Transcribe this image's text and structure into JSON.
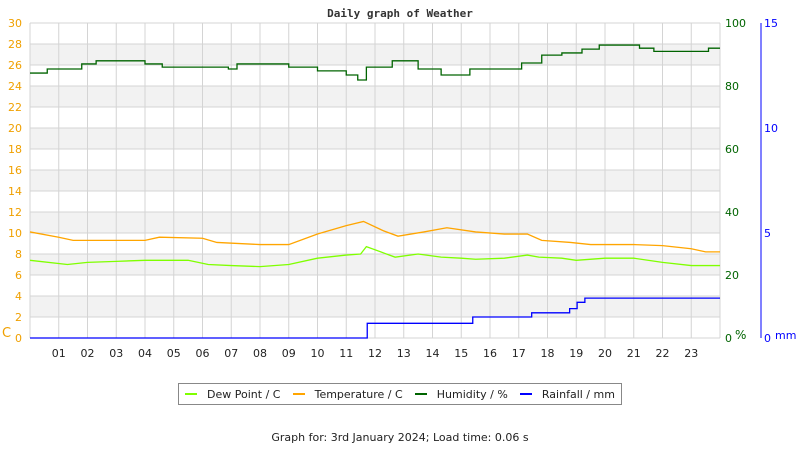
{
  "chart_data": {
    "type": "line",
    "title": "Daily graph of Weather",
    "x_ticks": [
      "01",
      "02",
      "03",
      "04",
      "05",
      "06",
      "07",
      "08",
      "09",
      "10",
      "11",
      "12",
      "13",
      "14",
      "15",
      "16",
      "17",
      "18",
      "19",
      "20",
      "21",
      "22",
      "23"
    ],
    "xlim": [
      0,
      24
    ],
    "grid": true,
    "axes": {
      "left": {
        "label": "C",
        "range": [
          0,
          30
        ],
        "ticks": [
          0,
          2,
          4,
          6,
          8,
          10,
          12,
          14,
          16,
          18,
          20,
          22,
          24,
          26,
          28,
          30
        ],
        "color": "#f0a000"
      },
      "right_humidity": {
        "label": "%",
        "range": [
          0,
          100
        ],
        "ticks": [
          0,
          20,
          40,
          60,
          80,
          100
        ],
        "color": "#006400"
      },
      "right_rain": {
        "label": "mm",
        "range": [
          0,
          15
        ],
        "ticks": [
          0,
          5,
          10,
          15
        ],
        "color": "#0000ff"
      }
    },
    "series": [
      {
        "name": "Dew Point / C",
        "color": "#7fff00",
        "axis": "left",
        "step": false,
        "x": [
          0,
          1.3,
          2,
          3,
          4,
          5.5,
          6.2,
          7,
          8,
          9,
          10,
          11,
          11.5,
          11.7,
          12.3,
          12.7,
          13.5,
          14.3,
          15,
          15.5,
          16.5,
          17.3,
          17.7,
          18.5,
          19,
          20,
          21,
          22,
          23,
          24
        ],
        "values": [
          7.4,
          7.0,
          7.2,
          7.3,
          7.4,
          7.4,
          7.0,
          6.9,
          6.8,
          7.0,
          7.6,
          7.9,
          8.0,
          8.7,
          8.1,
          7.7,
          8.0,
          7.7,
          7.6,
          7.5,
          7.6,
          7.9,
          7.7,
          7.6,
          7.4,
          7.6,
          7.6,
          7.2,
          6.9,
          6.9
        ]
      },
      {
        "name": "Temperature / C",
        "color": "#ffa500",
        "axis": "left",
        "step": false,
        "x": [
          0,
          1,
          1.5,
          4,
          4.5,
          6,
          6.5,
          8,
          9,
          10,
          11,
          11.6,
          12.3,
          12.8,
          13.7,
          14.5,
          15.5,
          16.5,
          17.3,
          17.8,
          18.8,
          19.5,
          21,
          22,
          23,
          23.5,
          24
        ],
        "values": [
          10.1,
          9.6,
          9.3,
          9.3,
          9.6,
          9.5,
          9.1,
          8.9,
          8.9,
          9.9,
          10.7,
          11.1,
          10.2,
          9.7,
          10.1,
          10.5,
          10.1,
          9.9,
          9.9,
          9.3,
          9.1,
          8.9,
          8.9,
          8.8,
          8.5,
          8.2,
          8.2
        ]
      },
      {
        "name": "Humidity / %",
        "color": "#006400",
        "axis": "right_humidity",
        "step": true,
        "x": [
          0,
          0.6,
          1.8,
          2.3,
          4,
          4.6,
          6.9,
          7.2,
          9.0,
          10,
          11.0,
          11.4,
          11.7,
          12.6,
          13.5,
          14.3,
          15.3,
          16.5,
          17.1,
          17.8,
          18.5,
          19.2,
          19.8,
          21.2,
          21.7,
          23.6,
          24
        ],
        "values": [
          84.1,
          85.4,
          87,
          88,
          87,
          86,
          85.4,
          87,
          86,
          84.8,
          83.5,
          81.9,
          86,
          88,
          85.4,
          83.5,
          85.4,
          85.4,
          87.3,
          89.8,
          90.5,
          91.7,
          93,
          92,
          91,
          92,
          92
        ]
      },
      {
        "name": "Rainfall / mm",
        "color": "#0000ff",
        "axis": "right_rain",
        "step": true,
        "x": [
          0,
          11.73,
          15.4,
          17.45,
          18.77,
          19.03,
          19.3,
          24
        ],
        "values": [
          0,
          0.7,
          1.0,
          1.2,
          1.4,
          1.7,
          1.9,
          1.9
        ]
      }
    ],
    "legend_position": "bottom"
  },
  "footer": {
    "text": "Graph for: 3rd January 2024; Load time: 0.06 s"
  }
}
